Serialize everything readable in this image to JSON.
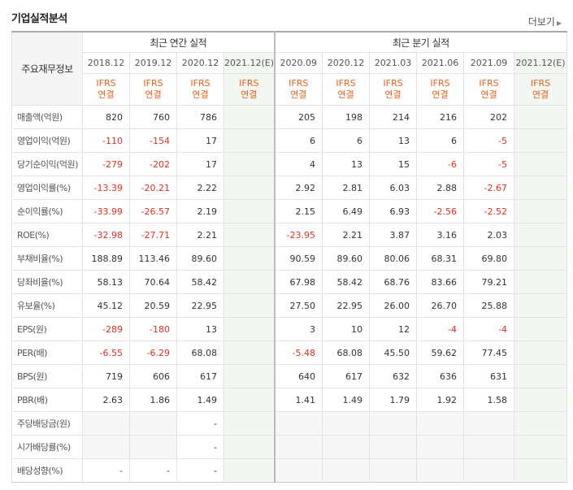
{
  "title": "기업실적분석",
  "more_label": "더보기",
  "header": {
    "corner": "주요재무정보",
    "annual_group": "최근 연간 실적",
    "quarterly_group": "최근 분기 실적"
  },
  "periods": [
    "2018.12",
    "2019.12",
    "2020.12",
    "2021.12(E)",
    "2020.09",
    "2020.12",
    "2021.03",
    "2021.06",
    "2021.09",
    "2021.12(E)"
  ],
  "estimate_flags": [
    false,
    false,
    false,
    true,
    false,
    false,
    false,
    false,
    false,
    true
  ],
  "standard": {
    "line1": "IFRS",
    "line2": "연결"
  },
  "rows": [
    {
      "label": "매출액(억원)",
      "values": [
        "820",
        "760",
        "786",
        "",
        "205",
        "198",
        "214",
        "216",
        "202",
        ""
      ]
    },
    {
      "label": "영업이익(억원)",
      "values": [
        "-110",
        "-154",
        "17",
        "",
        "6",
        "6",
        "13",
        "6",
        "-5",
        ""
      ]
    },
    {
      "label": "당기순이익(억원)",
      "values": [
        "-279",
        "-202",
        "17",
        "",
        "4",
        "13",
        "15",
        "-6",
        "-5",
        ""
      ]
    },
    {
      "label": "영업이익률(%)",
      "values": [
        "-13.39",
        "-20.21",
        "2.22",
        "",
        "2.92",
        "2.81",
        "6.03",
        "2.88",
        "-2.67",
        ""
      ]
    },
    {
      "label": "순이익률(%)",
      "values": [
        "-33.99",
        "-26.57",
        "2.19",
        "",
        "2.15",
        "6.49",
        "6.93",
        "-2.56",
        "-2.52",
        ""
      ]
    },
    {
      "label": "ROE(%)",
      "values": [
        "-32.98",
        "-27.71",
        "2.21",
        "",
        "-23.95",
        "2.21",
        "3.87",
        "3.16",
        "2.03",
        ""
      ]
    },
    {
      "label": "부채비율(%)",
      "values": [
        "188.89",
        "113.46",
        "89.60",
        "",
        "90.59",
        "89.60",
        "80.06",
        "68.31",
        "69.80",
        ""
      ]
    },
    {
      "label": "당좌비율(%)",
      "values": [
        "58.13",
        "70.64",
        "58.42",
        "",
        "67.98",
        "58.42",
        "68.76",
        "83.66",
        "79.21",
        ""
      ]
    },
    {
      "label": "유보율(%)",
      "values": [
        "45.12",
        "20.59",
        "22.95",
        "",
        "27.50",
        "22.95",
        "26.00",
        "26.70",
        "25.88",
        ""
      ]
    },
    {
      "label": "EPS(원)",
      "values": [
        "-289",
        "-180",
        "13",
        "",
        "3",
        "10",
        "12",
        "-4",
        "-4",
        ""
      ]
    },
    {
      "label": "PER(배)",
      "values": [
        "-6.55",
        "-6.29",
        "68.08",
        "",
        "-5.48",
        "68.08",
        "45.50",
        "59.62",
        "77.45",
        ""
      ]
    },
    {
      "label": "BPS(원)",
      "values": [
        "719",
        "606",
        "617",
        "",
        "640",
        "617",
        "632",
        "636",
        "631",
        ""
      ]
    },
    {
      "label": "PBR(배)",
      "values": [
        "2.63",
        "1.86",
        "1.49",
        "",
        "1.41",
        "1.49",
        "1.79",
        "1.92",
        "1.58",
        ""
      ]
    },
    {
      "label": "주당배당금(원)",
      "values": [
        "",
        "",
        "-",
        "",
        "",
        "",
        "",
        "",
        "",
        ""
      ]
    },
    {
      "label": "시가배당률(%)",
      "values": [
        "",
        "",
        "-",
        "",
        "",
        "",
        "",
        "",
        "",
        ""
      ]
    },
    {
      "label": "배당성향(%)",
      "values": [
        "-",
        "-",
        "-",
        "",
        "",
        "",
        "",
        "",
        "",
        ""
      ]
    }
  ],
  "group_starts": [
    0,
    3,
    6,
    9,
    13
  ],
  "blank_cells": {
    "13": [
      0,
      1,
      4,
      5,
      6,
      7,
      8
    ],
    "14": [
      0,
      1,
      4,
      5,
      6,
      7,
      8
    ],
    "15": [
      4,
      5,
      6,
      7,
      8
    ]
  }
}
